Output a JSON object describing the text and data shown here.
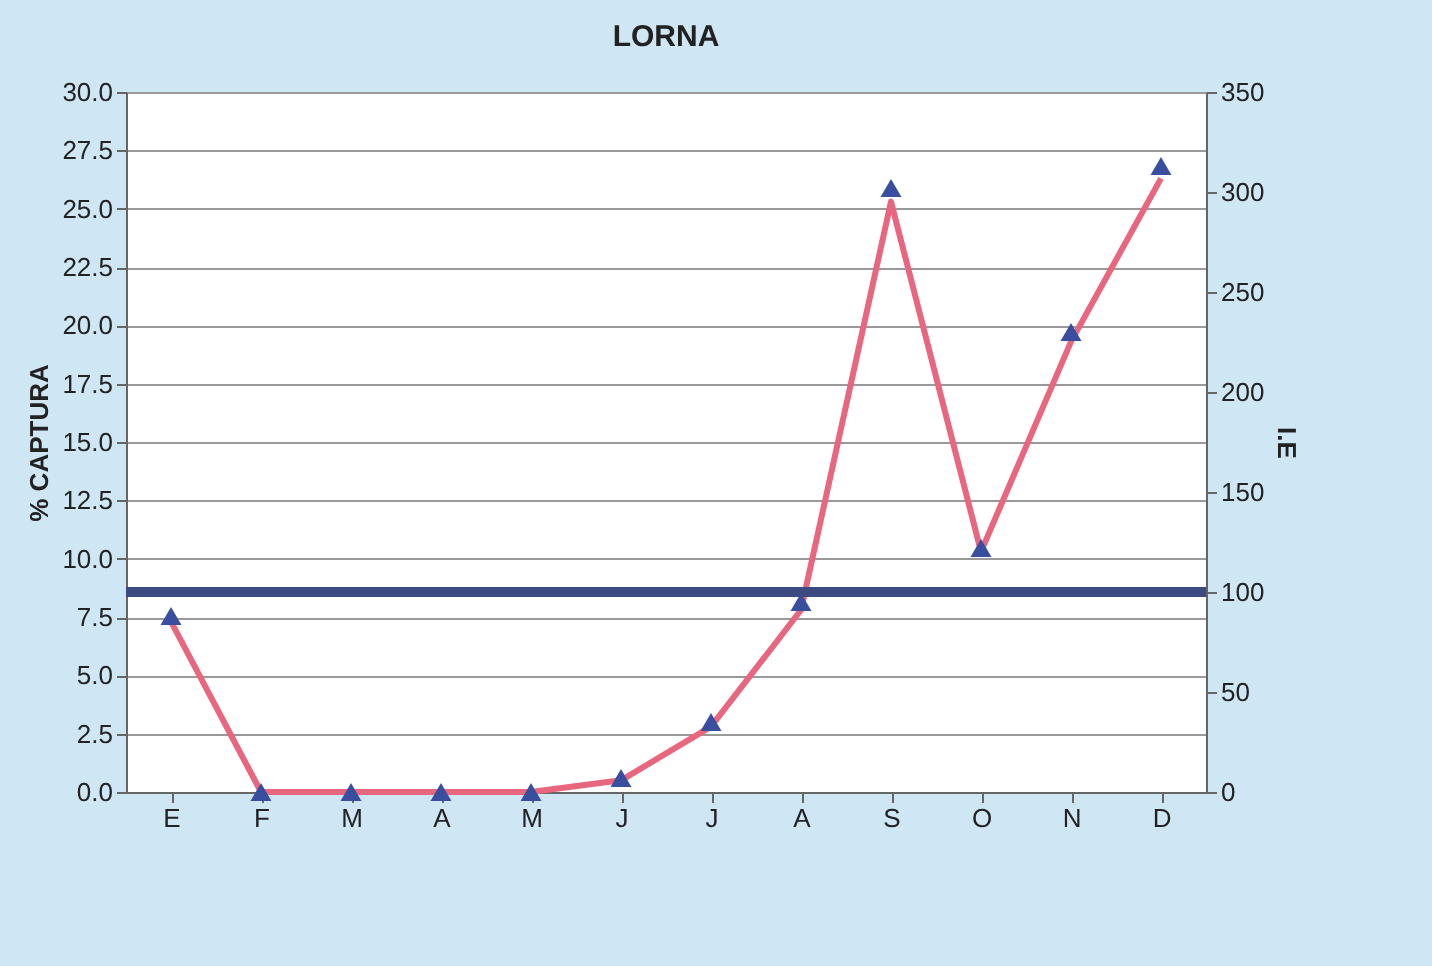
{
  "chart_data": {
    "type": "line",
    "title": "LORNA",
    "ylabel": "% CAPTURA",
    "y2label": "I.E",
    "categories": [
      "E",
      "F",
      "M",
      "A",
      "M",
      "J",
      "J",
      "A",
      "S",
      "O",
      "N",
      "D"
    ],
    "series": [
      {
        "type": "line",
        "color": "#e8667e",
        "marker": "none",
        "values": [
          7.3,
          0,
          0,
          0,
          0,
          0.5,
          2.8,
          7.8,
          25.3,
          10.3,
          19.3,
          26.3
        ]
      },
      {
        "type": "scatter",
        "axis": "y2",
        "color": "#3a4ea0",
        "marker": "triangle",
        "values": [
          88,
          0,
          0,
          0,
          0,
          7,
          35,
          95,
          302,
          122,
          230,
          313
        ]
      }
    ],
    "ref_lines": [
      {
        "axis": "y2",
        "value": 100,
        "color": "#3b4a80"
      }
    ],
    "ylim": [
      0,
      30
    ],
    "yticks": [
      {
        "value": 0,
        "label": "0.0"
      },
      {
        "value": 2.5,
        "label": "2.5"
      },
      {
        "value": 5,
        "label": "5.0"
      },
      {
        "value": 7.5,
        "label": "7.5"
      },
      {
        "value": 10,
        "label": "10.0"
      },
      {
        "value": 12.5,
        "label": "12.5"
      },
      {
        "value": 15,
        "label": "15.0"
      },
      {
        "value": 17.5,
        "label": "17.5"
      },
      {
        "value": 20,
        "label": "20.0"
      },
      {
        "value": 22.5,
        "label": "22.5"
      },
      {
        "value": 25,
        "label": "25.0"
      },
      {
        "value": 27.5,
        "label": "27.5"
      },
      {
        "value": 30,
        "label": "30.0"
      }
    ],
    "y2lim": [
      0,
      350
    ],
    "y2ticks": [
      0,
      50,
      100,
      150,
      200,
      250,
      300,
      350
    ],
    "grid": "y"
  }
}
